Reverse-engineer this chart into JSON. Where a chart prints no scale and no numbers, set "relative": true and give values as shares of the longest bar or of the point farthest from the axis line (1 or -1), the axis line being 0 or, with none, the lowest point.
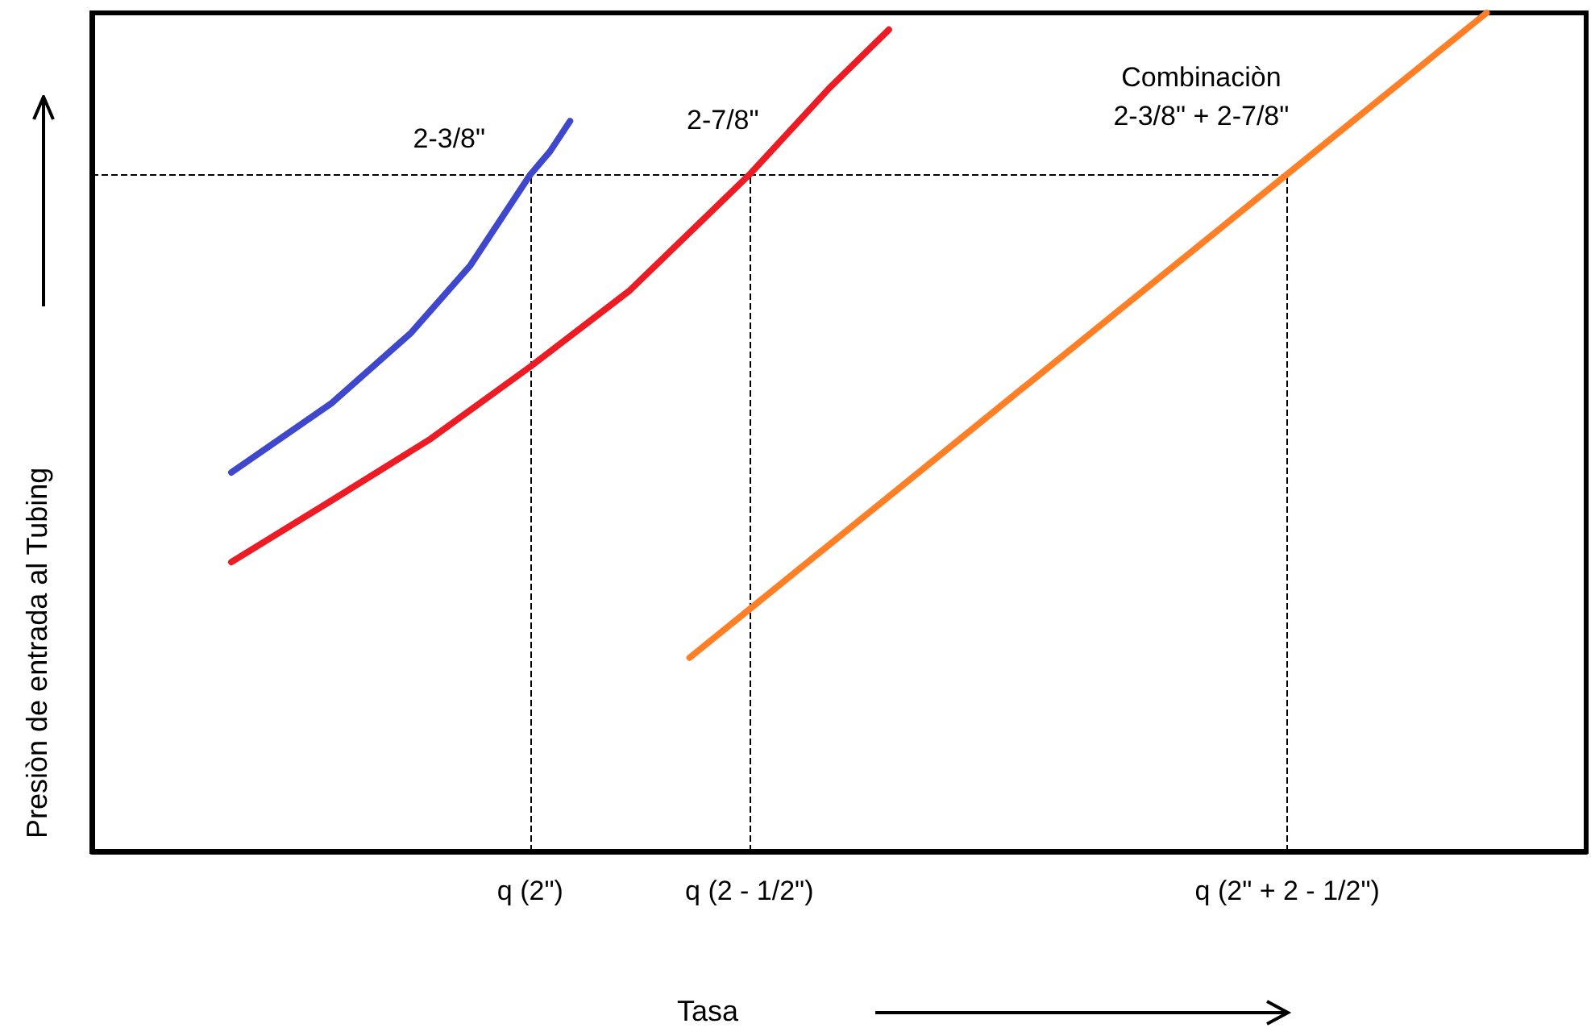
{
  "chart_data": {
    "type": "line",
    "relative": true,
    "xlabel": "Tasa",
    "ylabel": "Presiòn de entrada al Tubing",
    "categories": [
      null,
      null,
      null,
      null,
      null,
      null,
      null,
      null,
      null,
      null,
      null,
      null,
      null,
      null,
      null,
      null,
      null,
      null,
      null,
      null,
      null,
      null,
      "q (2\")",
      null,
      null,
      null,
      null,
      null,
      null,
      null,
      null,
      null,
      null,
      "q (2 - 1/2\")",
      null,
      null,
      null,
      null,
      null,
      null,
      null,
      null,
      null,
      null,
      null,
      null,
      null,
      null,
      null,
      null,
      null,
      null,
      null,
      null,
      null,
      null,
      null,
      null,
      null,
      null,
      "q (2\" + 2 - 1/2\")",
      null,
      null,
      null,
      null,
      null,
      null,
      null,
      null,
      null,
      null,
      null,
      null,
      null,
      null,
      null
    ],
    "grid": false,
    "legend": false,
    "marker": "none",
    "line_style": "solid",
    "series": [
      {
        "name": "2-3/8\"",
        "color": "#3f48cc",
        "values": [
          null,
          null,
          null,
          null,
          null,
          null,
          null,
          0.452,
          null,
          null,
          null,
          null,
          0.534,
          null,
          null,
          null,
          0.618,
          null,
          null,
          0.699,
          null,
          null,
          0.807,
          0.835,
          0.871,
          null,
          null,
          null,
          null,
          null,
          null,
          null,
          null,
          null,
          null,
          null,
          null,
          null,
          null,
          null,
          null,
          null,
          null,
          null,
          null,
          null,
          null,
          null,
          null,
          null,
          null,
          null,
          null,
          null,
          null,
          null,
          null,
          null,
          null,
          null,
          null,
          null,
          null,
          null,
          null,
          null,
          null,
          null,
          null,
          null,
          null,
          null,
          null,
          null,
          null,
          null
        ]
      },
      {
        "name": "2-7/8\"",
        "color": "#ed1c24",
        "values": [
          null,
          null,
          null,
          null,
          null,
          null,
          null,
          0.345,
          null,
          null,
          null,
          null,
          0.418,
          null,
          null,
          null,
          null,
          0.492,
          null,
          null,
          null,
          null,
          0.578,
          null,
          null,
          null,
          null,
          0.669,
          null,
          null,
          null,
          null,
          null,
          0.807,
          null,
          null,
          null,
          0.91,
          null,
          null,
          0.98,
          null,
          null,
          null,
          null,
          null,
          null,
          null,
          null,
          null,
          null,
          null,
          null,
          null,
          null,
          null,
          null,
          null,
          null,
          null,
          null,
          null,
          null,
          null,
          null,
          null,
          null,
          null,
          null,
          null,
          null,
          null,
          null,
          null,
          null,
          null
        ]
      },
      {
        "name": "Combinaciòn\n2-3/8\" + 2-7/8\"",
        "color": "#ff7f27",
        "values": [
          null,
          null,
          null,
          null,
          null,
          null,
          null,
          null,
          null,
          null,
          null,
          null,
          null,
          null,
          null,
          null,
          null,
          null,
          null,
          null,
          null,
          null,
          null,
          null,
          null,
          null,
          null,
          null,
          null,
          null,
          0.231,
          null,
          null,
          null,
          null,
          null,
          null,
          null,
          null,
          null,
          null,
          null,
          null,
          null,
          null,
          null,
          null,
          null,
          null,
          null,
          null,
          null,
          null,
          null,
          null,
          null,
          null,
          null,
          null,
          null,
          null,
          null,
          null,
          null,
          null,
          null,
          null,
          null,
          null,
          null,
          1.0,
          null,
          null,
          null,
          null,
          null
        ]
      }
    ],
    "ref_lines": [
      {
        "axis": "y",
        "value": 0.807,
        "line_style": "dashed",
        "color": "#000000"
      },
      {
        "axis": "x",
        "value": "q (2\")",
        "line_style": "dashed",
        "color": "#000000"
      },
      {
        "axis": "x",
        "value": "q (2 - 1/2\")",
        "line_style": "dashed",
        "color": "#000000"
      },
      {
        "axis": "x",
        "value": "q (2\" + 2 - 1/2\")",
        "line_style": "dashed",
        "color": "#000000"
      }
    ]
  }
}
